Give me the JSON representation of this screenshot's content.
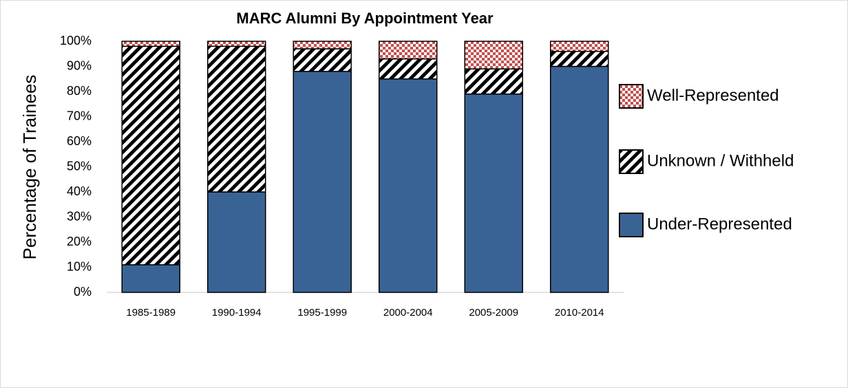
{
  "chart_data": {
    "type": "stacked_bar",
    "title": "MARC Alumni By Appointment Year",
    "y_label": "Percentage of Trainees",
    "categories": [
      "1985-1989",
      "1990-1994",
      "1995-1999",
      "2000-2004",
      "2005-2009",
      "2010-2014"
    ],
    "series": [
      {
        "name": "Under-Represented",
        "color": "#3a6395",
        "pattern": "solid",
        "values": [
          11,
          40,
          88,
          85,
          79,
          90
        ]
      },
      {
        "name": "Unknown / Withheld",
        "color": "#000000",
        "pattern": "diagonal",
        "values": [
          87,
          58,
          9,
          8,
          10,
          6
        ]
      },
      {
        "name": "Well-Represented",
        "color": "#c0504d",
        "pattern": "checker",
        "values": [
          2,
          2,
          3,
          7,
          11,
          4
        ]
      }
    ],
    "ylim": [
      0,
      100
    ],
    "yticks": [
      {
        "value": 0,
        "label": "0%"
      },
      {
        "value": 10,
        "label": "10%"
      },
      {
        "value": 20,
        "label": "20%"
      },
      {
        "value": 30,
        "label": "30%"
      },
      {
        "value": 40,
        "label": "40%"
      },
      {
        "value": 50,
        "label": "50%"
      },
      {
        "value": 60,
        "label": "60%"
      },
      {
        "value": 70,
        "label": "70%"
      },
      {
        "value": 80,
        "label": "80%"
      },
      {
        "value": 90,
        "label": "90%"
      },
      {
        "value": 100,
        "label": "100%"
      }
    ],
    "legend": "right"
  }
}
